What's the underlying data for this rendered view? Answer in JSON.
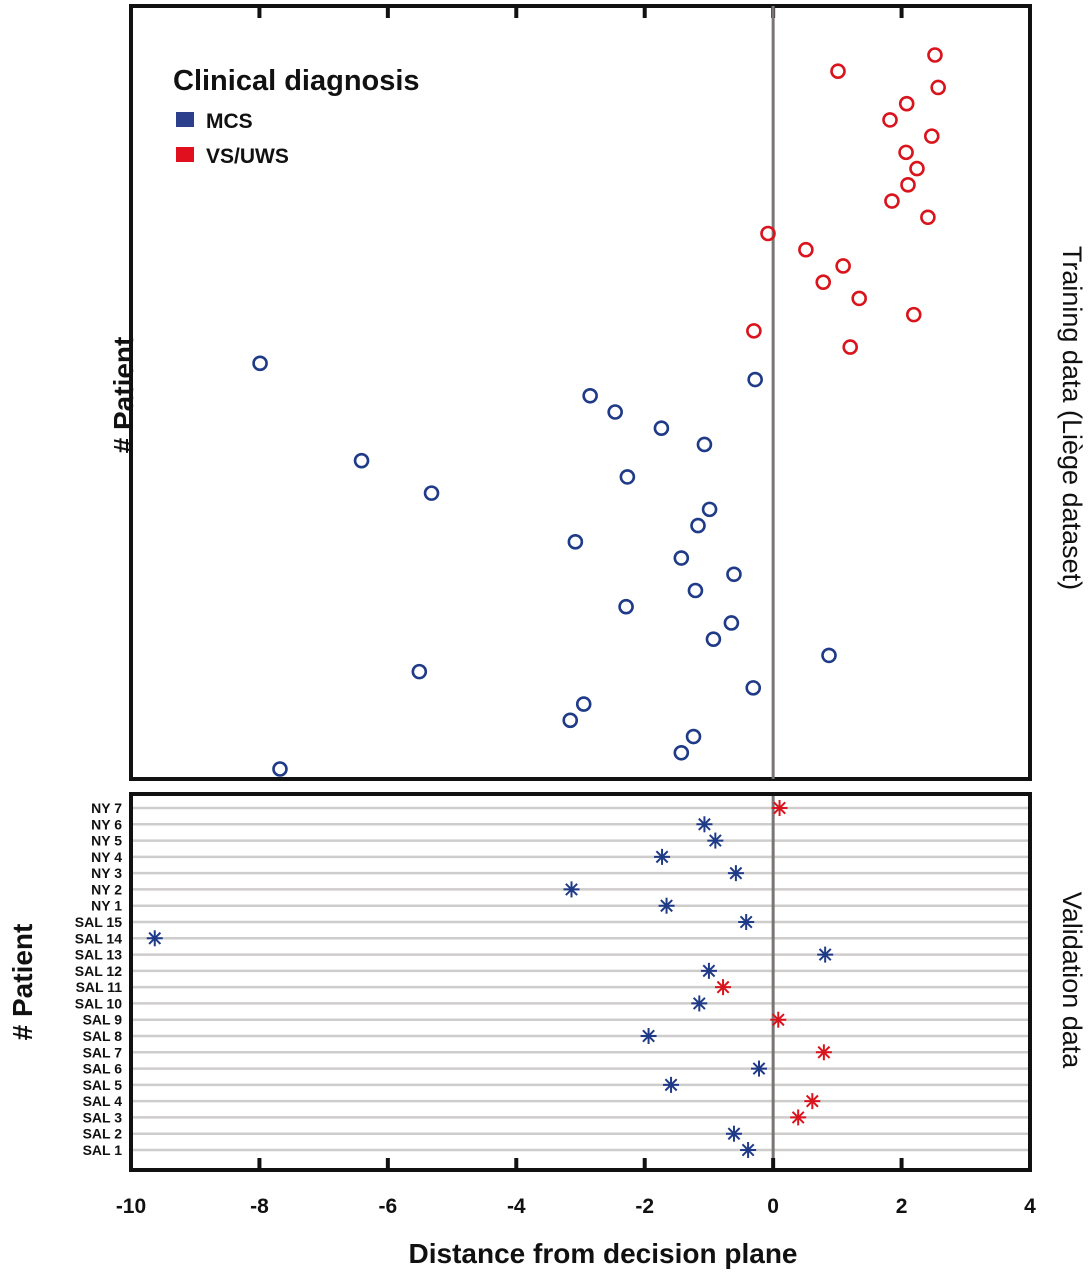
{
  "chart_data": {
    "type": "scatter",
    "xlabel": "Distance from decision plane",
    "xlim": [
      -10,
      4
    ],
    "x_ticks": [
      -10,
      -8,
      -6,
      -4,
      -2,
      0,
      2,
      4
    ],
    "x_tick_labels": [
      "-10",
      "-8",
      "-6",
      "-4",
      "-2",
      "0",
      "2",
      "4"
    ],
    "decision_plane_x": 0,
    "legend": {
      "title": "Clinical diagnosis",
      "placement": "top-left",
      "entries": [
        {
          "label": "MCS",
          "color": "#2b3f8c"
        },
        {
          "label": "VS/UWS",
          "color": "#e0101e"
        }
      ]
    },
    "colors": {
      "MCS": "#1f3a87",
      "VS/UWS": "#d9141c",
      "decision_line": "#7a7474",
      "grid": "#cfcccc",
      "frame": "#111111"
    },
    "panels": [
      {
        "name": "training",
        "side_label": "Training data (Liège dataset)",
        "ylabel": "# Patient",
        "marker": "circle",
        "points": [
          {
            "x": 2.52,
            "group": "VS/UWS"
          },
          {
            "x": 1.01,
            "group": "VS/UWS"
          },
          {
            "x": 2.57,
            "group": "VS/UWS"
          },
          {
            "x": 2.08,
            "group": "VS/UWS"
          },
          {
            "x": 1.82,
            "group": "VS/UWS"
          },
          {
            "x": 2.47,
            "group": "VS/UWS"
          },
          {
            "x": 2.07,
            "group": "VS/UWS"
          },
          {
            "x": 2.24,
            "group": "VS/UWS"
          },
          {
            "x": 2.1,
            "group": "VS/UWS"
          },
          {
            "x": 1.85,
            "group": "VS/UWS"
          },
          {
            "x": 2.41,
            "group": "VS/UWS"
          },
          {
            "x": -0.08,
            "group": "VS/UWS"
          },
          {
            "x": 0.51,
            "group": "VS/UWS"
          },
          {
            "x": 1.09,
            "group": "VS/UWS"
          },
          {
            "x": 0.78,
            "group": "VS/UWS"
          },
          {
            "x": 1.34,
            "group": "VS/UWS"
          },
          {
            "x": 2.19,
            "group": "VS/UWS"
          },
          {
            "x": -0.3,
            "group": "VS/UWS"
          },
          {
            "x": 1.2,
            "group": "VS/UWS"
          },
          {
            "x": -7.99,
            "group": "MCS"
          },
          {
            "x": -0.28,
            "group": "MCS"
          },
          {
            "x": -2.85,
            "group": "MCS"
          },
          {
            "x": -2.46,
            "group": "MCS"
          },
          {
            "x": -1.74,
            "group": "MCS"
          },
          {
            "x": -1.07,
            "group": "MCS"
          },
          {
            "x": -6.41,
            "group": "MCS"
          },
          {
            "x": -2.27,
            "group": "MCS"
          },
          {
            "x": -5.32,
            "group": "MCS"
          },
          {
            "x": -0.99,
            "group": "MCS"
          },
          {
            "x": -1.17,
            "group": "MCS"
          },
          {
            "x": -3.08,
            "group": "MCS"
          },
          {
            "x": -1.43,
            "group": "MCS"
          },
          {
            "x": -0.61,
            "group": "MCS"
          },
          {
            "x": -1.21,
            "group": "MCS"
          },
          {
            "x": -2.29,
            "group": "MCS"
          },
          {
            "x": -0.65,
            "group": "MCS"
          },
          {
            "x": -0.93,
            "group": "MCS"
          },
          {
            "x": 0.87,
            "group": "MCS"
          },
          {
            "x": -5.51,
            "group": "MCS"
          },
          {
            "x": -0.31,
            "group": "MCS"
          },
          {
            "x": -2.95,
            "group": "MCS"
          },
          {
            "x": -3.16,
            "group": "MCS"
          },
          {
            "x": -1.24,
            "group": "MCS"
          },
          {
            "x": -1.43,
            "group": "MCS"
          },
          {
            "x": -7.68,
            "group": "MCS"
          }
        ]
      },
      {
        "name": "validation",
        "side_label": "Validation data",
        "ylabel": "# Patient",
        "marker": "asterisk",
        "rows": [
          {
            "label": "NY 7",
            "x": 0.1,
            "group": "VS/UWS"
          },
          {
            "label": "NY 6",
            "x": -1.07,
            "group": "MCS"
          },
          {
            "label": "NY 5",
            "x": -0.9,
            "group": "MCS"
          },
          {
            "label": "NY 4",
            "x": -1.73,
            "group": "MCS"
          },
          {
            "label": "NY 3",
            "x": -0.58,
            "group": "MCS"
          },
          {
            "label": "NY 2",
            "x": -3.14,
            "group": "MCS"
          },
          {
            "label": "NY 1",
            "x": -1.66,
            "group": "MCS"
          },
          {
            "label": "SAL 15",
            "x": -0.42,
            "group": "MCS"
          },
          {
            "label": "SAL 14",
            "x": -9.63,
            "group": "MCS"
          },
          {
            "label": "SAL 13",
            "x": 0.81,
            "group": "MCS"
          },
          {
            "label": "SAL 12",
            "x": -1.0,
            "group": "MCS"
          },
          {
            "label": "SAL 11",
            "x": -0.78,
            "group": "VS/UWS"
          },
          {
            "label": "SAL 10",
            "x": -1.15,
            "group": "MCS"
          },
          {
            "label": "SAL 9",
            "x": 0.08,
            "group": "VS/UWS"
          },
          {
            "label": "SAL 8",
            "x": -1.94,
            "group": "MCS"
          },
          {
            "label": "SAL 7",
            "x": 0.79,
            "group": "VS/UWS"
          },
          {
            "label": "SAL 6",
            "x": -0.22,
            "group": "MCS"
          },
          {
            "label": "SAL 5",
            "x": -1.59,
            "group": "MCS"
          },
          {
            "label": "SAL 4",
            "x": 0.61,
            "group": "VS/UWS"
          },
          {
            "label": "SAL 3",
            "x": 0.39,
            "group": "VS/UWS"
          },
          {
            "label": "SAL 2",
            "x": -0.61,
            "group": "MCS"
          },
          {
            "label": "SAL 1",
            "x": -0.39,
            "group": "MCS"
          }
        ]
      }
    ]
  }
}
